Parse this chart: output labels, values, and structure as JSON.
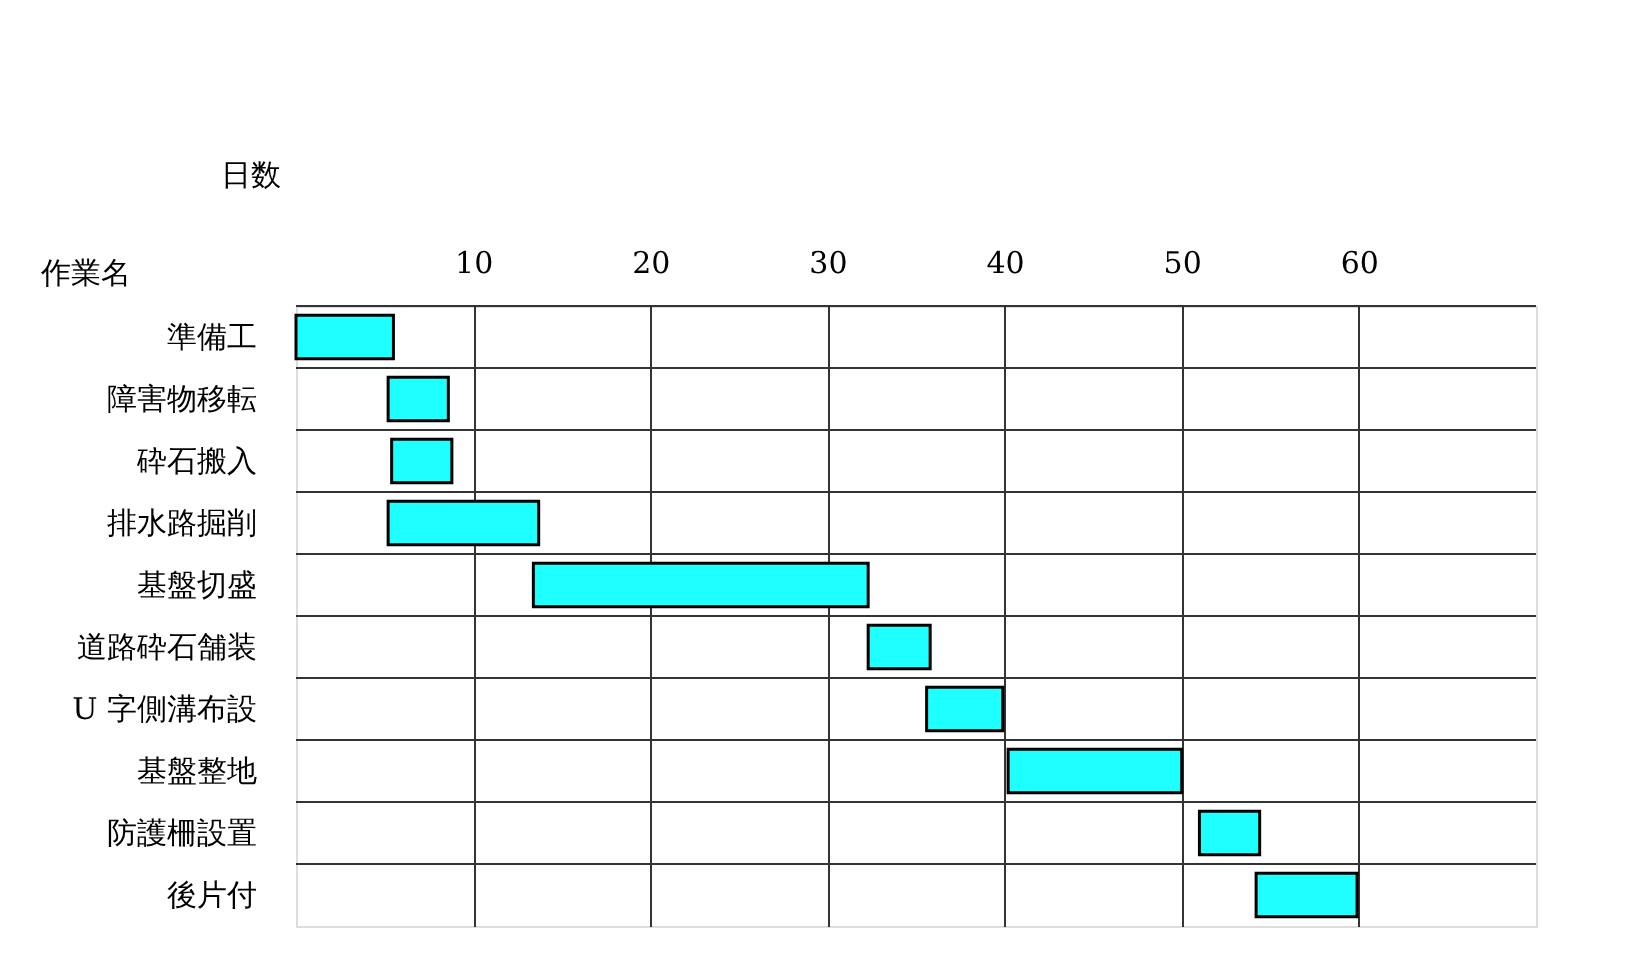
{
  "chart_data": {
    "type": "bar",
    "orientation": "horizontal",
    "xlabel": "日数",
    "ylabel": "作業名",
    "categories": [
      "準備工",
      "障害物移転",
      "砕石搬入",
      "排水路掘削",
      "基盤切盛",
      "道路砕石舗装",
      "U 字側溝布設",
      "基盤整地",
      "防護柵設置",
      "後片付"
    ],
    "base": [
      0,
      5.2,
      5.4,
      5.2,
      13.4,
      32.3,
      35.6,
      40.2,
      51.0,
      54.2
    ],
    "values": [
      5.5,
      3.4,
      3.4,
      8.5,
      18.9,
      3.5,
      4.3,
      9.8,
      3.4,
      5.7
    ],
    "color": "#1effff",
    "xlim": [
      0,
      70
    ],
    "xticks": [
      10,
      20,
      30,
      40,
      50,
      60
    ],
    "grid": true
  }
}
